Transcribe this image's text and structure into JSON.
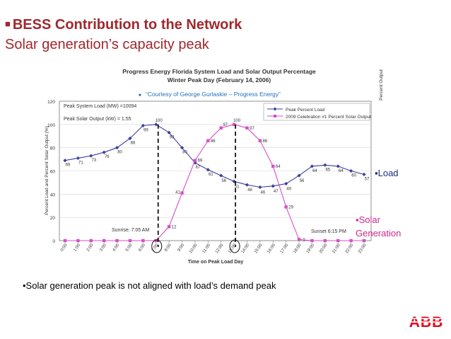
{
  "slide": {
    "title_line1": "BESS Contribution to the Network",
    "title_line2": "Solar generation’s capacity peak",
    "footnote": "•Solar generation peak is not aligned with load’s demand peak",
    "load_label": "▪Load",
    "solar_label_line1": "▪Solar",
    "solar_label_line2": "Generation",
    "logo_text": "ABB",
    "title_color": "#a0282d",
    "logo_color": "#e2001a"
  },
  "chart_data": {
    "type": "line",
    "title_line1": "Progress Energy Florida System Load and Solar Output Percentage",
    "title_line2": "Winter Peak Day (February 14, 2006)",
    "courtesy": "“Courtesy of  George Gurlaskie – Progress Energy”",
    "ylabel": "Percent Load and Percent Solar Output (%)",
    "ylabel_right": "Percent Output",
    "xlabel": "Time on Peak Load Day",
    "ylim": [
      0,
      120
    ],
    "yticks": [
      0,
      20,
      40,
      60,
      80,
      100,
      120
    ],
    "categories": [
      "0:00",
      "1:00",
      "2:00",
      "3:00",
      "4:00",
      "5:00",
      "6:00",
      "7:00",
      "8:00",
      "9:00",
      "10:00",
      "11:00",
      "12:00",
      "13:00",
      "14:00",
      "15:00",
      "16:00",
      "17:00",
      "18:00",
      "19:00",
      "20:00",
      "21:00",
      "22:00",
      "23:00"
    ],
    "annotations": {
      "peak_system_load": "Peak System Load (MW) =10094",
      "peak_solar_output": "Peak Solar Output (kW) =  1.55",
      "sunrise": "Sunrise: 7:05 AM",
      "sunset": "Sunset 6:15 PM"
    },
    "series": [
      {
        "name": "Peak Percent Load",
        "color": "#3a3f9e",
        "values": [
          69,
          71,
          73,
          76,
          80,
          88,
          99,
          100,
          93,
          80,
          67,
          61,
          56,
          51,
          48,
          46,
          47,
          49,
          56,
          64,
          65,
          64,
          60,
          57
        ],
        "labels": [
          "69",
          "71",
          "73",
          "76",
          "80",
          "88",
          "99",
          "100",
          "93",
          "80",
          "67",
          "61",
          "56",
          "51",
          "48",
          "46",
          "47",
          "49",
          "56",
          "64",
          "65",
          "64",
          "60",
          "57"
        ]
      },
      {
        "name": "2009 Celebration #1 Percent Solar Output",
        "color": "#d64fc8",
        "values": [
          0,
          0,
          0,
          0,
          0,
          0,
          0,
          0,
          12,
          41,
          69,
          86,
          97,
          100,
          97,
          86,
          64,
          29,
          1,
          0,
          0,
          0,
          0,
          0
        ],
        "labels": [
          "",
          "",
          "",
          "",
          "",
          "",
          "",
          "",
          "12",
          "41",
          "69",
          "86",
          "97",
          "100",
          "97",
          "86",
          "64",
          "29",
          "1",
          "",
          "",
          "",
          "",
          ""
        ]
      }
    ],
    "markers": {
      "load_peak_time": "7:00",
      "solar_peak_time": "13:00"
    }
  }
}
